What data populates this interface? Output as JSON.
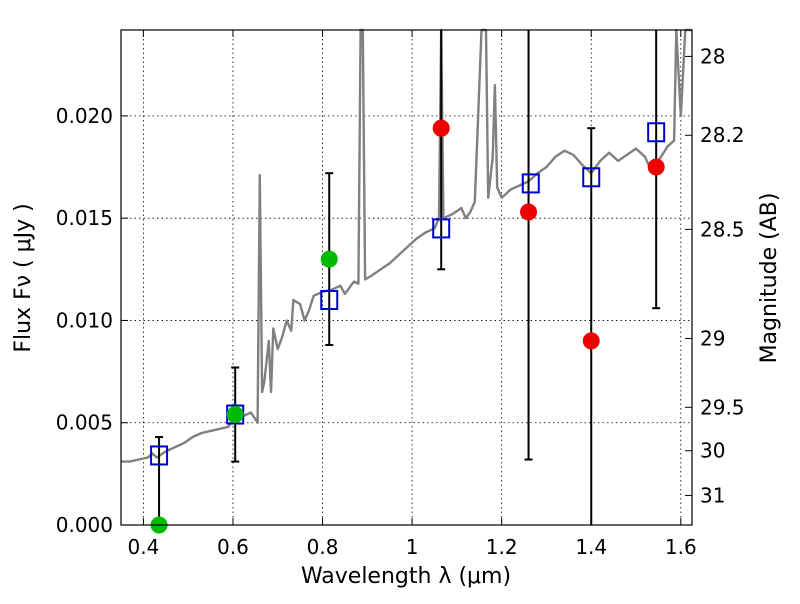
{
  "chart_data": {
    "type": "scatter",
    "title": "",
    "xlabel": "Wavelength  λ (μm)",
    "ylabel": "Flux  Fν  ( μJy )",
    "ylabel_right": "Magnitude (AB)",
    "xlim": [
      0.35,
      1.625
    ],
    "ylim": [
      0,
      0.0242
    ],
    "grid": true,
    "x_ticks": [
      {
        "v": 0.4,
        "label": "0.4"
      },
      {
        "v": 0.6,
        "label": "0.6"
      },
      {
        "v": 0.8,
        "label": "0.8"
      },
      {
        "v": 1.0,
        "label": "1"
      },
      {
        "v": 1.2,
        "label": "1.2"
      },
      {
        "v": 1.4,
        "label": "1.4"
      },
      {
        "v": 1.6,
        "label": "1.6"
      }
    ],
    "y_ticks": [
      {
        "v": 0.0,
        "label": "0.000"
      },
      {
        "v": 0.005,
        "label": "0.005"
      },
      {
        "v": 0.01,
        "label": "0.010"
      },
      {
        "v": 0.015,
        "label": "0.015"
      },
      {
        "v": 0.02,
        "label": "0.020"
      }
    ],
    "right_ticks": [
      {
        "mag": 28,
        "label": "28"
      },
      {
        "mag": 28.2,
        "label": "28.2"
      },
      {
        "mag": 28.5,
        "label": "28.5"
      },
      {
        "mag": 29,
        "label": "29"
      },
      {
        "mag": 29.5,
        "label": "29.5"
      },
      {
        "mag": 30,
        "label": "30"
      },
      {
        "mag": 31,
        "label": "31"
      }
    ],
    "model_spectrum": {
      "name": "model",
      "color": "#808080",
      "points": [
        [
          0.35,
          0.0031
        ],
        [
          0.37,
          0.0031
        ],
        [
          0.39,
          0.0032
        ],
        [
          0.41,
          0.0033
        ],
        [
          0.42,
          0.0035
        ],
        [
          0.43,
          0.0033
        ],
        [
          0.45,
          0.0036
        ],
        [
          0.47,
          0.0038
        ],
        [
          0.49,
          0.004
        ],
        [
          0.51,
          0.0043
        ],
        [
          0.53,
          0.0045
        ],
        [
          0.55,
          0.0046
        ],
        [
          0.57,
          0.0047
        ],
        [
          0.59,
          0.0048
        ],
        [
          0.6,
          0.0052
        ],
        [
          0.62,
          0.0053
        ],
        [
          0.64,
          0.0055
        ],
        [
          0.655,
          0.005
        ],
        [
          0.66,
          0.0171
        ],
        [
          0.665,
          0.0065
        ],
        [
          0.67,
          0.007
        ],
        [
          0.68,
          0.009
        ],
        [
          0.685,
          0.0065
        ],
        [
          0.69,
          0.0096
        ],
        [
          0.7,
          0.0086
        ],
        [
          0.71,
          0.0092
        ],
        [
          0.72,
          0.01
        ],
        [
          0.73,
          0.0095
        ],
        [
          0.735,
          0.011
        ],
        [
          0.75,
          0.0108
        ],
        [
          0.76,
          0.01
        ],
        [
          0.77,
          0.0105
        ],
        [
          0.78,
          0.0112
        ],
        [
          0.8,
          0.0114
        ],
        [
          0.82,
          0.0115
        ],
        [
          0.84,
          0.0117
        ],
        [
          0.85,
          0.0113
        ],
        [
          0.86,
          0.0116
        ],
        [
          0.87,
          0.0119
        ],
        [
          0.88,
          0.0118
        ],
        [
          0.885,
          0.0245
        ],
        [
          0.89,
          0.0245
        ],
        [
          0.895,
          0.012
        ],
        [
          0.91,
          0.0122
        ],
        [
          0.93,
          0.0125
        ],
        [
          0.95,
          0.0128
        ],
        [
          0.97,
          0.0132
        ],
        [
          0.99,
          0.0136
        ],
        [
          1.01,
          0.014
        ],
        [
          1.03,
          0.0143
        ],
        [
          1.05,
          0.0145
        ],
        [
          1.06,
          0.015
        ],
        [
          1.065,
          0.0245
        ],
        [
          1.07,
          0.015
        ],
        [
          1.09,
          0.0152
        ],
        [
          1.11,
          0.0155
        ],
        [
          1.12,
          0.015
        ],
        [
          1.13,
          0.0153
        ],
        [
          1.14,
          0.0158
        ],
        [
          1.155,
          0.0245
        ],
        [
          1.165,
          0.0245
        ],
        [
          1.17,
          0.016
        ],
        [
          1.18,
          0.018
        ],
        [
          1.185,
          0.0215
        ],
        [
          1.19,
          0.0165
        ],
        [
          1.2,
          0.016
        ],
        [
          1.22,
          0.0164
        ],
        [
          1.24,
          0.0166
        ],
        [
          1.26,
          0.0168
        ],
        [
          1.28,
          0.0172
        ],
        [
          1.3,
          0.0175
        ],
        [
          1.32,
          0.018
        ],
        [
          1.34,
          0.0183
        ],
        [
          1.36,
          0.0181
        ],
        [
          1.38,
          0.0176
        ],
        [
          1.4,
          0.0172
        ],
        [
          1.42,
          0.0178
        ],
        [
          1.44,
          0.0182
        ],
        [
          1.46,
          0.0178
        ],
        [
          1.48,
          0.0181
        ],
        [
          1.5,
          0.0184
        ],
        [
          1.52,
          0.018
        ],
        [
          1.53,
          0.0175
        ],
        [
          1.55,
          0.0178
        ],
        [
          1.57,
          0.0185
        ],
        [
          1.585,
          0.0188
        ],
        [
          1.59,
          0.0245
        ],
        [
          1.6,
          0.02
        ],
        [
          1.61,
          0.0245
        ],
        [
          1.625,
          0.0245
        ]
      ]
    },
    "model_photometry": {
      "name": "model photometry",
      "color": "#0000cc",
      "points": [
        [
          0.435,
          0.0034
        ],
        [
          0.605,
          0.0054
        ],
        [
          0.815,
          0.011
        ],
        [
          1.065,
          0.0145
        ],
        [
          1.265,
          0.0167
        ],
        [
          1.4,
          0.017
        ],
        [
          1.545,
          0.0192
        ]
      ]
    },
    "detections": {
      "name": "detections",
      "color": "#00bb00",
      "points": [
        [
          0.435,
          0.0
        ],
        [
          0.605,
          0.0054
        ],
        [
          0.815,
          0.013
        ]
      ]
    },
    "nondetections": {
      "name": "non-detections",
      "color": "#ee0000",
      "points": [
        [
          1.065,
          0.0194
        ],
        [
          1.26,
          0.0153
        ],
        [
          1.4,
          0.009
        ],
        [
          1.545,
          0.0175
        ]
      ]
    },
    "error_bars": [
      {
        "x": 0.435,
        "low": 0.0,
        "high": 0.0043
      },
      {
        "x": 0.605,
        "low": 0.0031,
        "high": 0.0077
      },
      {
        "x": 0.815,
        "low": 0.0088,
        "high": 0.0172
      },
      {
        "x": 1.065,
        "low": 0.0125,
        "high": 0.0245
      },
      {
        "x": 1.26,
        "low": 0.0032,
        "high": 0.0245
      },
      {
        "x": 1.4,
        "low": 0.0,
        "high": 0.0194
      },
      {
        "x": 1.545,
        "low": 0.0106,
        "high": 0.0245
      }
    ]
  }
}
